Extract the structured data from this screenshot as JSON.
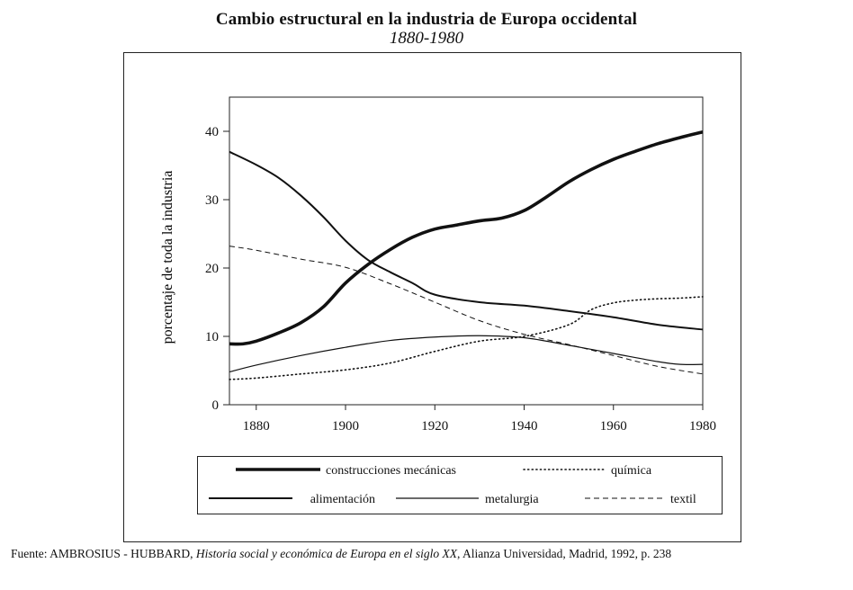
{
  "title": "Cambio estructural en la industria de Europa occidental",
  "subtitle": "1880-1980",
  "footer": {
    "prefix": "Fuente: AMBROSIUS - HUBBARD, ",
    "book": "Historia social y económica de Europa en el siglo XX",
    "suffix": ", Alianza Universidad, Madrid, 1992, p. 238"
  },
  "chart_data": {
    "type": "line",
    "title": "Cambio estructural en la industria de Europa occidental",
    "subtitle": "1880-1980",
    "xlabel": "",
    "ylabel": "porcentaje de toda la industria",
    "xlim": [
      1874,
      1980
    ],
    "ylim": [
      0,
      45
    ],
    "xticks": [
      1880,
      1900,
      1920,
      1940,
      1960,
      1980
    ],
    "yticks": [
      0,
      10,
      20,
      30,
      40
    ],
    "grid": false,
    "legend_position": "bottom",
    "legend_order": [
      0,
      1,
      2,
      3,
      4
    ],
    "series": [
      {
        "name": "construcciones mecánicas",
        "style": "thick",
        "x": [
          1874,
          1877,
          1880,
          1885,
          1890,
          1895,
          1900,
          1905,
          1910,
          1915,
          1920,
          1925,
          1930,
          1935,
          1940,
          1945,
          1950,
          1955,
          1960,
          1965,
          1970,
          1975,
          1980
        ],
        "y": [
          8.9,
          8.9,
          9.3,
          10.5,
          12.0,
          14.3,
          17.8,
          20.5,
          22.7,
          24.5,
          25.7,
          26.3,
          26.9,
          27.3,
          28.4,
          30.4,
          32.6,
          34.4,
          35.9,
          37.1,
          38.2,
          39.1,
          39.9
        ]
      },
      {
        "name": "química",
        "style": "dotted",
        "x": [
          1874,
          1880,
          1890,
          1900,
          1910,
          1920,
          1930,
          1940,
          1950,
          1955,
          1960,
          1965,
          1970,
          1975,
          1980
        ],
        "y": [
          3.7,
          3.9,
          4.5,
          5.1,
          6.1,
          7.8,
          9.3,
          10.0,
          11.7,
          13.9,
          14.9,
          15.3,
          15.5,
          15.6,
          15.8
        ]
      },
      {
        "name": "alimentación",
        "style": "medium",
        "x": [
          1874,
          1880,
          1885,
          1890,
          1895,
          1900,
          1905,
          1910,
          1915,
          1920,
          1930,
          1940,
          1950,
          1960,
          1970,
          1980
        ],
        "y": [
          37.0,
          35.1,
          33.2,
          30.6,
          27.5,
          24.0,
          21.2,
          19.4,
          17.8,
          16.1,
          15.0,
          14.5,
          13.7,
          12.8,
          11.7,
          11.0
        ]
      },
      {
        "name": "metalurgia",
        "style": "thin",
        "x": [
          1874,
          1880,
          1890,
          1900,
          1910,
          1920,
          1930,
          1940,
          1950,
          1960,
          1970,
          1975,
          1980
        ],
        "y": [
          4.8,
          5.8,
          7.2,
          8.4,
          9.4,
          9.9,
          10.1,
          9.8,
          8.7,
          7.5,
          6.3,
          5.9,
          5.9
        ]
      },
      {
        "name": "textil",
        "style": "dashed",
        "x": [
          1874,
          1880,
          1890,
          1900,
          1910,
          1920,
          1930,
          1940,
          1950,
          1960,
          1970,
          1980
        ],
        "y": [
          23.2,
          22.6,
          21.3,
          20.1,
          17.7,
          15.0,
          12.3,
          10.3,
          8.8,
          7.2,
          5.6,
          4.5
        ]
      }
    ]
  }
}
